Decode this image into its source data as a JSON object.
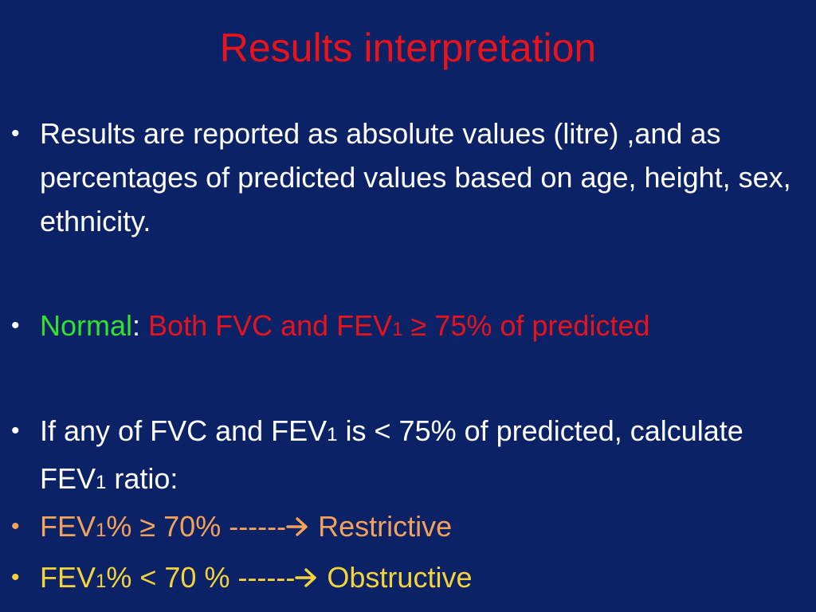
{
  "slide": {
    "title": "Results interpretation",
    "bullet_glyph": "•",
    "items": [
      {
        "text": "Results are reported as absolute values (litre) ,and as percentages of predicted values based on age, height, sex, ethnicity."
      },
      {
        "normal_label": "Normal",
        "colon": ":",
        "criteria_prefix": " Both FVC and FEV",
        "criteria_sub": "1",
        "criteria_suffix": " ≥ 75% of predicted"
      },
      {
        "part1": "If any of  FVC and FEV",
        "sub1": "1",
        "part2": " is < 75% of predicted, calculate FEV",
        "sub2": "1",
        "part3": " ratio:"
      },
      {
        "prefix": "FEV",
        "sub": "1",
        "condition": "% ≥  70%  ------",
        "result": " Restrictive"
      },
      {
        "prefix": "FEV",
        "sub": "1",
        "condition": "% < 70 % ------",
        "result": " Obstructive"
      }
    ]
  },
  "colors": {
    "background": "#0c2266",
    "title": "#e8141b",
    "normal_label": "#33e22a",
    "criteria": "#e8141b",
    "restrictive_line": "#f2a25a",
    "obstructive_line": "#f5d33a"
  },
  "icons": {
    "arrow": "right-arrow-icon"
  }
}
